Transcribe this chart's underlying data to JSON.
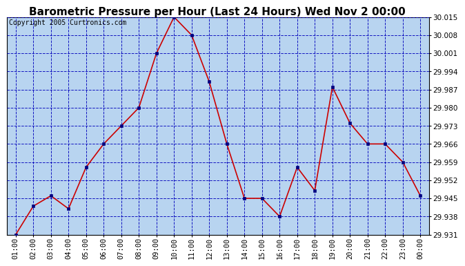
{
  "title": "Barometric Pressure per Hour (Last 24 Hours) Wed Nov 2 00:00",
  "copyright": "Copyright 2005 Curtronics.com",
  "x_labels": [
    "01:00",
    "02:00",
    "03:00",
    "04:00",
    "05:00",
    "06:00",
    "07:00",
    "08:00",
    "09:00",
    "10:00",
    "11:00",
    "12:00",
    "13:00",
    "14:00",
    "15:00",
    "16:00",
    "17:00",
    "18:00",
    "19:00",
    "20:00",
    "21:00",
    "22:00",
    "23:00",
    "00:00"
  ],
  "y_values": [
    29.931,
    29.942,
    29.946,
    29.941,
    29.957,
    29.966,
    29.973,
    29.98,
    30.001,
    30.015,
    30.008,
    29.99,
    29.966,
    29.945,
    29.945,
    29.938,
    29.957,
    29.948,
    29.988,
    29.974,
    29.966,
    29.966,
    29.959,
    29.946
  ],
  "ylim_min": 29.931,
  "ylim_max": 30.015,
  "y_tick_step": 0.007,
  "line_color": "#cc0000",
  "marker_color": "#000080",
  "bg_color": "#b8d4f0",
  "plot_bg": "#ffffff",
  "grid_color": "#0000bb",
  "title_fontsize": 11,
  "copyright_fontsize": 7,
  "tick_label_fontsize": 7.5,
  "y_tick_label_fontsize": 7.5
}
